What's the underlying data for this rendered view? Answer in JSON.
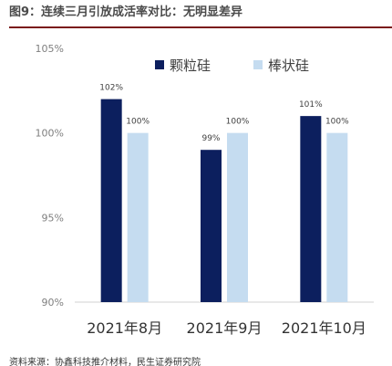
{
  "figure": {
    "title": "图9：连续三月引放成活率对比：无明显差异",
    "source": "资料来源：协鑫科技推介材料，民生证券研究院"
  },
  "chart_data": {
    "type": "bar",
    "categories": [
      "2021年8月",
      "2021年9月",
      "2021年10月"
    ],
    "series": [
      {
        "name": "颗粒硅",
        "values": [
          102,
          99,
          101
        ],
        "labels": [
          "102%",
          "99%",
          "101%"
        ],
        "color": "#0c1f5e"
      },
      {
        "name": "棒状硅",
        "values": [
          100,
          100,
          100
        ],
        "labels": [
          "100%",
          "100%",
          "100%"
        ],
        "color": "#c5dcf0"
      }
    ],
    "ylim": [
      90,
      105
    ],
    "yticks": [
      90,
      95,
      100,
      105
    ],
    "ytick_labels": [
      "90%",
      "95%",
      "100%",
      "105%"
    ],
    "legend_position": "top-right",
    "grid": false
  }
}
